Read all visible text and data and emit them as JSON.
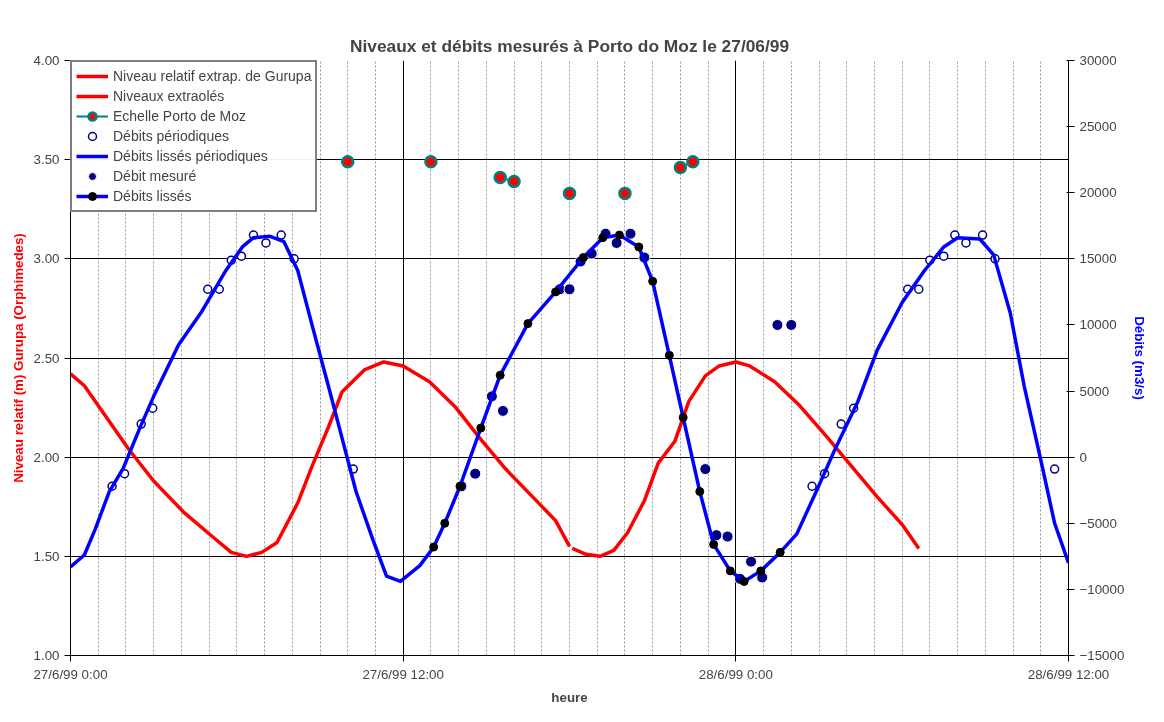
{
  "chart_data": {
    "type": "line",
    "title": "Niveaux et débits mesurés à Porto do Moz le 27/06/99",
    "xlabel": "heure",
    "ylabel": "Niveau relatif (m) Gurupa (Orphimedes)",
    "y2label": "Débits (m3/s)",
    "xlim": [
      "1999-06-27T00:00",
      "1999-06-28T12:00"
    ],
    "xticks": [
      {
        "value": "1999-06-27T00:00",
        "label": "27/6/99 0:00"
      },
      {
        "value": "1999-06-27T12:00",
        "label": "27/6/99 12:00"
      },
      {
        "value": "1999-06-28T00:00",
        "label": "28/6/99 0:00"
      },
      {
        "value": "1999-06-28T12:00",
        "label": "28/6/99 12:00"
      }
    ],
    "ylim": [
      1,
      4
    ],
    "yticks": [
      {
        "value": 1,
        "label": "1.00"
      },
      {
        "value": 1.5,
        "label": "1.50"
      },
      {
        "value": 2,
        "label": "2.00"
      },
      {
        "value": 2.5,
        "label": "2.50"
      },
      {
        "value": 3,
        "label": "3.00"
      },
      {
        "value": 3.5,
        "label": "3.50"
      },
      {
        "value": 4,
        "label": "4.00"
      }
    ],
    "y2lim": [
      -15000,
      30000
    ],
    "y2ticks": [
      -15000,
      -10000,
      -5000,
      0,
      5000,
      10000,
      15000,
      20000,
      25000,
      30000
    ],
    "grid": true,
    "legend": "top left",
    "series": [
      {
        "name": "Niveau relatif extrap. de Gurupa",
        "color": "#ff0000",
        "marker": "none",
        "x": [
          "1999-06-27T00:00",
          "1999-06-27T00:30",
          "1999-06-27T01:12",
          "1999-06-27T02:06",
          "1999-06-27T03:00",
          "1999-06-27T04:06",
          "1999-06-27T05:12",
          "1999-06-27T05:48",
          "1999-06-27T06:21",
          "1999-06-27T06:54",
          "1999-06-27T07:27",
          "1999-06-27T08:12",
          "1999-06-27T08:42",
          "1999-06-27T09:18",
          "1999-06-27T09:48",
          "1999-06-27T10:36",
          "1999-06-27T11:18",
          "1999-06-27T12:00",
          "1999-06-27T12:57",
          "1999-06-27T13:54",
          "1999-06-27T14:48",
          "1999-06-27T15:42",
          "1999-06-27T16:36",
          "1999-06-27T17:30",
          "1999-06-27T18:00"
        ],
        "values": [
          2.42,
          2.36,
          2.22,
          2.04,
          1.88,
          1.72,
          1.59,
          1.52,
          1.5,
          1.52,
          1.57,
          1.77,
          1.95,
          2.15,
          2.33,
          2.44,
          2.48,
          2.46,
          2.38,
          2.25,
          2.09,
          1.94,
          1.81,
          1.68,
          1.55
        ]
      },
      {
        "name": "Niveaux extraolés",
        "color": "#ff0000",
        "marker": "none",
        "x": [
          "1999-06-27T18:06",
          "1999-06-27T18:36",
          "1999-06-27T19:06",
          "1999-06-27T19:36",
          "1999-06-27T20:06",
          "1999-06-27T20:42",
          "1999-06-27T21:12",
          "1999-06-27T21:48",
          "1999-06-27T22:18",
          "1999-06-27T22:54",
          "1999-06-27T23:24",
          "1999-06-28T00:00",
          "1999-06-28T00:30",
          "1999-06-28T01:24",
          "1999-06-28T02:18",
          "1999-06-28T03:18",
          "1999-06-28T04:12",
          "1999-06-28T05:06",
          "1999-06-28T06:00",
          "1999-06-28T06:36"
        ],
        "values": [
          1.54,
          1.51,
          1.5,
          1.53,
          1.62,
          1.78,
          1.97,
          2.08,
          2.28,
          2.41,
          2.46,
          2.48,
          2.46,
          2.38,
          2.26,
          2.1,
          1.95,
          1.8,
          1.66,
          1.54
        ]
      },
      {
        "name": "Echelle Porto de Moz",
        "color": "#ff0000",
        "marker": "circle",
        "x": [
          "1999-06-27T10:00",
          "1999-06-27T11:30",
          "1999-06-27T13:00",
          "1999-06-27T14:00",
          "1999-06-27T15:30",
          "1999-06-27T16:00",
          "1999-06-27T17:00",
          "1999-06-27T18:00",
          "1999-06-27T19:00",
          "1999-06-27T20:00",
          "1999-06-27T21:00",
          "1999-06-27T22:00",
          "1999-06-27T22:27"
        ],
        "values": [
          3.49,
          null,
          3.49,
          null,
          3.41,
          3.39,
          null,
          3.33,
          null,
          3.33,
          null,
          3.46,
          3.49
        ]
      },
      {
        "name": "Débits périodiques",
        "type": "scatter",
        "axis": "y2",
        "color": "#000080",
        "marker": "circle",
        "x": [
          "1999-06-27T01:30",
          "1999-06-27T01:57",
          "1999-06-27T02:33",
          "1999-06-27T02:58",
          "1999-06-27T04:57",
          "1999-06-27T05:22",
          "1999-06-27T05:48",
          "1999-06-27T06:10",
          "1999-06-27T06:36",
          "1999-06-27T07:03",
          "1999-06-27T07:36",
          "1999-06-27T08:04",
          "1999-06-27T10:12",
          "1999-06-28T02:45",
          "1999-06-28T03:12",
          "1999-06-28T03:48",
          "1999-06-28T04:15",
          "1999-06-28T06:12",
          "1999-06-28T06:36",
          "1999-06-28T07:00",
          "1999-06-28T07:30",
          "1999-06-28T07:54",
          "1999-06-28T08:18",
          "1999-06-28T08:54",
          "1999-06-28T09:21",
          "1999-06-28T11:30"
        ],
        "values": [
          -2200,
          -1250,
          2500,
          3700,
          12700,
          12700,
          14900,
          15200,
          16800,
          16200,
          16800,
          15000,
          -900,
          -2200,
          -1250,
          2500,
          3700,
          12700,
          12700,
          14900,
          15200,
          16800,
          16200,
          16800,
          15000,
          -900
        ]
      },
      {
        "name": "Débits lissés périodiques",
        "axis": "y2",
        "color": "#0000ff",
        "marker": "none",
        "x": [
          "1999-06-27T00:00",
          "1999-06-27T00:30",
          "1999-06-27T00:54",
          "1999-06-27T01:24",
          "1999-06-27T01:54",
          "1999-06-27T02:30",
          "1999-06-27T03:00",
          "1999-06-27T03:54",
          "1999-06-27T04:42",
          "1999-06-27T05:36",
          "1999-06-27T06:12",
          "1999-06-27T06:36",
          "1999-06-27T07:12",
          "1999-06-27T07:42",
          "1999-06-27T08:12",
          "1999-06-27T08:42",
          "1999-06-27T09:18",
          "1999-06-27T09:48",
          "1999-06-27T10:18",
          "1999-06-27T10:54",
          "1999-06-27T11:24",
          "1999-06-27T11:54",
          "1999-06-27T12:36",
          "1999-06-27T13:06",
          "1999-06-27T19:00",
          "1999-06-28T01:36",
          "1999-06-28T02:12",
          "1999-06-28T02:54",
          "1999-06-28T03:36",
          "1999-06-28T04:24",
          "1999-06-28T05:06",
          "1999-06-28T06:00",
          "1999-06-28T06:48",
          "1999-06-28T07:30",
          "1999-06-28T08:00",
          "1999-06-28T08:48",
          "1999-06-28T09:18",
          "1999-06-28T09:54",
          "1999-06-28T10:24",
          "1999-06-28T11:00",
          "1999-06-28T11:30",
          "1999-06-28T12:00"
        ],
        "values": [
          -8300,
          -7400,
          -5400,
          -2600,
          -850,
          2200,
          4600,
          8500,
          10900,
          14100,
          15900,
          16600,
          16700,
          16300,
          14100,
          10100,
          5400,
          1400,
          -2600,
          -6200,
          -9000,
          -9400,
          -8200,
          -6800,
          null,
          -7200,
          -5800,
          -2600,
          700,
          4200,
          8100,
          11700,
          14100,
          15900,
          16600,
          16500,
          15300,
          10900,
          5400,
          -200,
          -5000,
          -8000
        ]
      },
      {
        "name": "Débit mesuré",
        "type": "scatter",
        "axis": "y2",
        "color": "#000080",
        "marker": "circle",
        "x": [
          "1999-06-27T14:06",
          "1999-06-27T14:36",
          "1999-06-27T15:12",
          "1999-06-27T15:36",
          "1999-06-27T17:39",
          "1999-06-27T18:00",
          "1999-06-27T18:24",
          "1999-06-27T18:48",
          "1999-06-27T19:18",
          "1999-06-27T19:42",
          "1999-06-27T20:12",
          "1999-06-27T20:42",
          "1999-06-27T22:54",
          "1999-06-27T23:18",
          "1999-06-27T23:42",
          "1999-06-28T00:09",
          "1999-06-28T00:33",
          "1999-06-28T00:57",
          "1999-06-28T01:30",
          "1999-06-28T02:00"
        ],
        "values": [
          -2200,
          -1250,
          4600,
          3500,
          12700,
          12700,
          14800,
          15400,
          16900,
          16200,
          16900,
          15100,
          -900,
          -5900,
          -6000,
          -9200,
          -7900,
          -9100,
          10000,
          10000
        ]
      },
      {
        "name": "Débits lissés",
        "axis": "y2",
        "color": "#0000ff",
        "marker": "circle",
        "x": [
          "1999-06-27T13:06",
          "1999-06-27T13:30",
          "1999-06-27T14:03",
          "1999-06-27T14:48",
          "1999-06-27T15:30",
          "1999-06-27T16:30",
          "1999-06-27T17:30",
          "1999-06-27T18:30",
          "1999-06-27T19:12",
          "1999-06-27T19:48",
          "1999-06-27T20:30",
          "1999-06-27T21:00",
          "1999-06-27T21:36",
          "1999-06-27T22:06",
          "1999-06-27T22:42",
          "1999-06-27T23:12",
          "1999-06-27T23:48",
          "1999-06-28T00:18",
          "1999-06-28T00:54",
          "1999-06-28T01:36"
        ],
        "values": [
          -6800,
          -5000,
          -2200,
          2200,
          6200,
          10100,
          12500,
          15100,
          16600,
          16800,
          15900,
          13300,
          7700,
          3000,
          -2600,
          -6600,
          -8600,
          -9400,
          -8600,
          -7200
        ]
      }
    ]
  }
}
